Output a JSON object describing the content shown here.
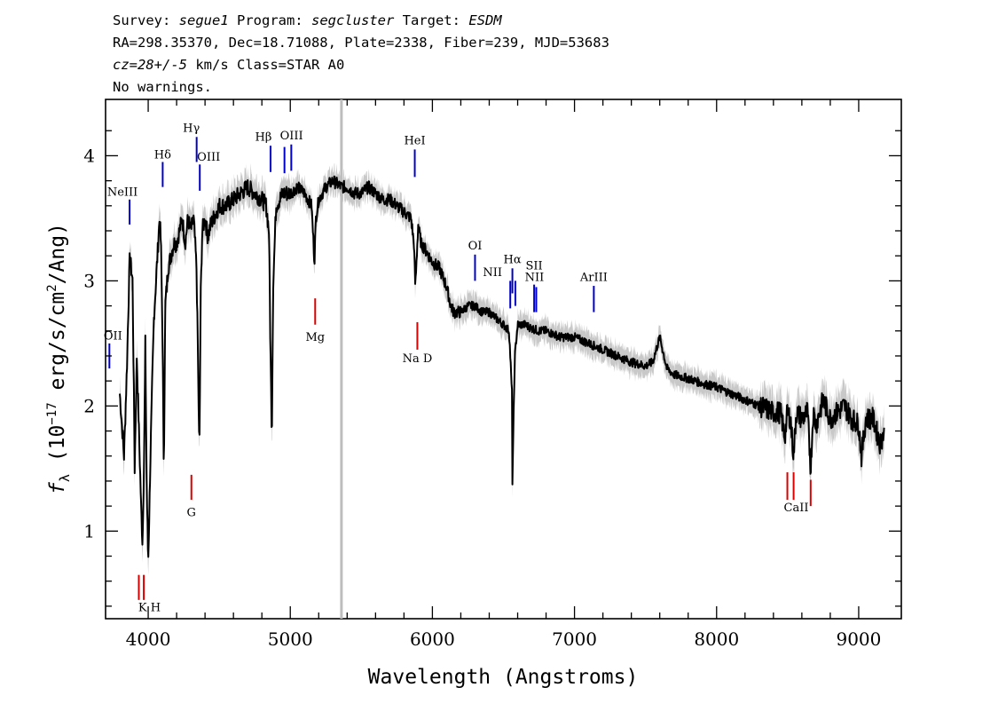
{
  "header": {
    "line1": [
      {
        "text": "Survey: ",
        "italic": false
      },
      {
        "text": "segue1",
        "italic": true
      },
      {
        "text": " Program: ",
        "italic": false
      },
      {
        "text": "segcluster",
        "italic": true
      },
      {
        "text": " Target: ",
        "italic": false
      },
      {
        "text": "ESDM",
        "italic": true
      }
    ],
    "line2": "RA=298.35370, Dec=18.71088, Plate=2338, Fiber=239, MJD=53683",
    "line3": [
      {
        "text": "cz=28+/-5",
        "italic": true
      },
      {
        "text": " km/s Class=STAR A0",
        "italic": false
      }
    ],
    "line4": "No warnings."
  },
  "chart_data": {
    "type": "line",
    "xlabel": "Wavelength (Angstroms)",
    "ylabel": "f_λ (10^-17 erg/s/cm^2/Ang)",
    "xlim": [
      3700,
      9300
    ],
    "ylim": [
      0.3,
      4.45
    ],
    "x_ticks": [
      4000,
      5000,
      6000,
      7000,
      8000,
      9000
    ],
    "y_ticks": [
      1,
      2,
      3,
      4
    ],
    "grid": false,
    "marker_line_x": 5360,
    "colors": {
      "flux": "#000000",
      "error_band": "#c8c8c8",
      "emission": "#0000cc",
      "absorption": "#dd0000",
      "marker_line": "#bdbdbd"
    },
    "series": [
      {
        "x": [
          3800,
          3830,
          3850,
          3870,
          3890,
          3905,
          3920,
          3935,
          3950,
          3960,
          3970,
          3980,
          3990,
          4000,
          4020,
          4040,
          4060,
          4080,
          4090,
          4100,
          4110,
          4120,
          4140,
          4160,
          4180,
          4200,
          4220,
          4240,
          4260,
          4280,
          4300,
          4320,
          4340,
          4350,
          4360,
          4370,
          4380,
          4400,
          4420,
          4440,
          4460,
          4480,
          4500,
          4550,
          4600,
          4650,
          4700,
          4750,
          4800,
          4830,
          4850,
          4860,
          4870,
          4880,
          4900,
          4950,
          5000,
          5050,
          5100,
          5150,
          5170,
          5180,
          5200,
          5250,
          5300,
          5360,
          5400,
          5450,
          5500,
          5550,
          5600,
          5650,
          5700,
          5750,
          5800,
          5850,
          5870,
          5880,
          5890,
          5900,
          5920,
          5950,
          6000,
          6050,
          6100,
          6130,
          6150,
          6200,
          6250,
          6300,
          6350,
          6400,
          6450,
          6500,
          6540,
          6560,
          6563,
          6580,
          6600,
          6650,
          6700,
          6750,
          6800,
          6900,
          7000,
          7100,
          7200,
          7300,
          7400,
          7500,
          7550,
          7600,
          7650,
          7700,
          7800,
          7900,
          8000,
          8100,
          8200,
          8300,
          8400,
          8450,
          8480,
          8498,
          8520,
          8542,
          8560,
          8600,
          8640,
          8662,
          8680,
          8700,
          8750,
          8800,
          8850,
          8900,
          8950,
          9000,
          9020,
          9050,
          9100,
          9150,
          9180
        ],
        "y": [
          2.1,
          1.6,
          2.3,
          3.2,
          3.0,
          1.5,
          2.4,
          1.8,
          1.2,
          0.9,
          1.5,
          2.5,
          1.3,
          0.75,
          1.8,
          2.7,
          3.1,
          3.5,
          3.3,
          2.6,
          1.5,
          2.8,
          3.1,
          3.2,
          3.3,
          3.3,
          3.4,
          3.5,
          3.3,
          3.5,
          3.4,
          3.5,
          3.1,
          2.4,
          1.6,
          2.9,
          3.4,
          3.5,
          3.35,
          3.45,
          3.5,
          3.55,
          3.6,
          3.6,
          3.65,
          3.7,
          3.75,
          3.7,
          3.65,
          3.6,
          3.4,
          2.5,
          1.75,
          3.0,
          3.6,
          3.7,
          3.7,
          3.75,
          3.7,
          3.6,
          3.15,
          3.5,
          3.65,
          3.75,
          3.8,
          3.75,
          3.75,
          3.7,
          3.7,
          3.75,
          3.7,
          3.65,
          3.65,
          3.6,
          3.55,
          3.5,
          3.3,
          2.95,
          3.2,
          3.45,
          3.3,
          3.25,
          3.15,
          3.1,
          2.95,
          2.8,
          2.75,
          2.75,
          2.8,
          2.8,
          2.75,
          2.75,
          2.7,
          2.65,
          2.6,
          2.1,
          1.4,
          2.4,
          2.65,
          2.65,
          2.62,
          2.6,
          2.6,
          2.55,
          2.55,
          2.5,
          2.45,
          2.4,
          2.35,
          2.32,
          2.35,
          2.55,
          2.3,
          2.25,
          2.22,
          2.18,
          2.15,
          2.1,
          2.05,
          2.0,
          1.95,
          1.95,
          1.75,
          1.95,
          1.9,
          1.6,
          1.95,
          1.9,
          1.95,
          1.5,
          1.95,
          1.85,
          2.05,
          1.9,
          1.95,
          2.0,
          1.9,
          1.85,
          1.6,
          1.9,
          1.9,
          1.7,
          1.8
        ]
      }
    ],
    "lines": [
      {
        "label": "NeIII",
        "x": 3869,
        "color": "#0000cc",
        "y": 3.4,
        "ends": [
          3.45,
          3.65
        ],
        "label_y": 3.68,
        "label_dx": -8
      },
      {
        "label": "Hδ",
        "x": 4102,
        "color": "#0000cc",
        "y": 3.75,
        "ends": [
          3.75,
          3.95
        ],
        "label_y": 3.98,
        "label_dx": 0
      },
      {
        "label": "Hγ",
        "x": 4341,
        "color": "#0000cc",
        "y": 3.95,
        "ends": [
          3.95,
          4.15
        ],
        "label_y": 4.19,
        "label_dx": -6
      },
      {
        "label": "OIII",
        "x": 4363,
        "color": "#0000cc",
        "y": 3.75,
        "ends": [
          3.72,
          3.93
        ],
        "label_y": 3.96,
        "label_dx": 10
      },
      {
        "label": "Hβ",
        "x": 4861,
        "color": "#0000cc",
        "y": 3.85,
        "ends": [
          3.87,
          4.08
        ],
        "label_y": 4.12,
        "label_dx": -8
      },
      {
        "label": "OIII",
        "x": 4959,
        "color": "#0000cc",
        "y": 3.85,
        "ends": [
          3.86,
          4.07
        ],
        "label_y": 4.13,
        "label_dx": 8
      },
      {
        "label": "",
        "x": 5007,
        "color": "#0000cc",
        "y": 3.85,
        "ends": [
          3.88,
          4.09
        ],
        "label_y": 0,
        "label_dx": 0
      },
      {
        "label": "HeI",
        "x": 5876,
        "color": "#0000cc",
        "y": 3.85,
        "ends": [
          3.83,
          4.05
        ],
        "label_y": 4.09,
        "label_dx": 0
      },
      {
        "label": "OI",
        "x": 6300,
        "color": "#0000cc",
        "y": 3.0,
        "ends": [
          3.0,
          3.21
        ],
        "label_y": 3.25,
        "label_dx": 0
      },
      {
        "label": "NII",
        "x": 6548,
        "color": "#0000cc",
        "y": 2.8,
        "ends": [
          2.78,
          3.0
        ],
        "label_y": 3.04,
        "label_dx": -20
      },
      {
        "label": "Hα",
        "x": 6563,
        "color": "#0000cc",
        "y": 2.9,
        "ends": [
          2.9,
          3.1
        ],
        "label_y": 3.14,
        "label_dx": 0
      },
      {
        "label": "",
        "x": 6584,
        "color": "#0000cc",
        "y": 2.8,
        "ends": [
          2.8,
          3.0
        ],
        "label_y": 0,
        "label_dx": 0
      },
      {
        "label": "SII",
        "x": 6716,
        "color": "#0000cc",
        "y": 2.75,
        "ends": [
          2.75,
          2.97
        ],
        "label_y": 3.09,
        "label_dx": 0
      },
      {
        "label": "NII",
        "x": 6731,
        "color": "#0000cc",
        "y": 2.75,
        "ends": [
          2.75,
          2.95
        ],
        "label_y": 3.0,
        "label_dx": -2
      },
      {
        "label": "ArIII",
        "x": 7136,
        "color": "#0000cc",
        "y": 2.75,
        "ends": [
          2.75,
          2.96
        ],
        "label_y": 3.0,
        "label_dx": 0
      },
      {
        "label": "OII",
        "x": 3727,
        "color": "#0000cc",
        "y": 2.3,
        "ends": [
          2.3,
          2.5
        ],
        "label_y": 2.53,
        "label_dx": 4
      },
      {
        "label": "K H",
        "x": 3934,
        "color": "#dd0000",
        "y": 0.45,
        "ends": [
          0.45,
          0.65
        ],
        "label_y": 0.36,
        "label_dx": 12
      },
      {
        "label": "",
        "x": 3969,
        "color": "#dd0000",
        "y": 0.45,
        "ends": [
          0.45,
          0.65
        ],
        "label_y": 0,
        "label_dx": 0
      },
      {
        "label": "G",
        "x": 4304,
        "color": "#dd0000",
        "y": 1.25,
        "ends": [
          1.25,
          1.45
        ],
        "label_y": 1.12,
        "label_dx": 0
      },
      {
        "label": "Mg",
        "x": 5175,
        "color": "#dd0000",
        "y": 2.65,
        "ends": [
          2.65,
          2.86
        ],
        "label_y": 2.52,
        "label_dx": 0
      },
      {
        "label": "Na D",
        "x": 5894,
        "color": "#dd0000",
        "y": 2.45,
        "ends": [
          2.45,
          2.67
        ],
        "label_y": 2.35,
        "label_dx": 0
      },
      {
        "label": "CaII",
        "x": 8498,
        "color": "#dd0000",
        "y": 1.25,
        "ends": [
          1.25,
          1.47
        ],
        "label_y": 1.16,
        "label_dx": 10
      },
      {
        "label": "",
        "x": 8542,
        "color": "#dd0000",
        "y": 1.25,
        "ends": [
          1.25,
          1.47
        ],
        "label_y": 0,
        "label_dx": 0
      },
      {
        "label": "",
        "x": 8662,
        "color": "#dd0000",
        "y": 1.2,
        "ends": [
          1.2,
          1.41
        ],
        "label_y": 0,
        "label_dx": 0
      }
    ]
  }
}
